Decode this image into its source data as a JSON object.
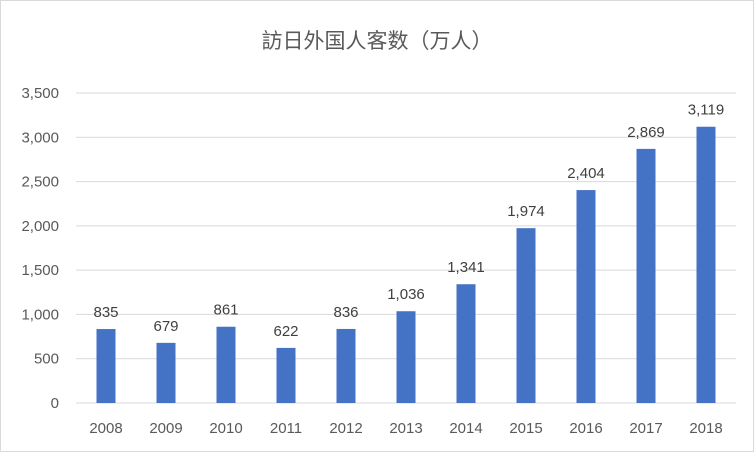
{
  "chart_data": {
    "type": "bar",
    "title": "訪日外国人客数（万人）",
    "categories": [
      "2008",
      "2009",
      "2010",
      "2011",
      "2012",
      "2013",
      "2014",
      "2015",
      "2016",
      "2017",
      "2018"
    ],
    "values": [
      835,
      679,
      861,
      622,
      836,
      1036,
      1341,
      1974,
      2404,
      2869,
      3119
    ],
    "value_labels": [
      "835",
      "679",
      "861",
      "622",
      "836",
      "1,036",
      "1,341",
      "1,974",
      "2,404",
      "2,869",
      "3,119"
    ],
    "yticks": [
      "0",
      "500",
      "1,000",
      "1,500",
      "2,000",
      "2,500",
      "3,000",
      "3,500"
    ],
    "ylim": [
      0,
      3500
    ],
    "grid": true,
    "bar_color": "#4472c4",
    "grid_color": "#d9d9d9"
  }
}
